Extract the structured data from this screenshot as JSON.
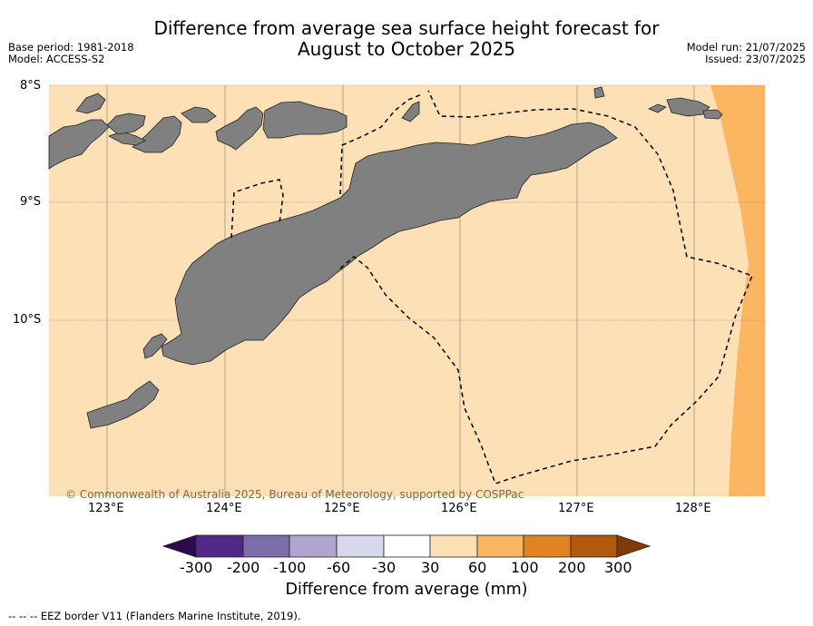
{
  "title": {
    "line1": "Difference from average sea surface height forecast for",
    "line2": "August to October 2025"
  },
  "meta": {
    "base_period": "Base period: 1981-2018",
    "model": "Model: ACCESS-S2",
    "model_run": "Model run: 21/07/2025",
    "issued": "Issued: 23/07/2025"
  },
  "axes": {
    "lat_labels": [
      "8°S",
      "9°S",
      "10°S"
    ],
    "lon_labels": [
      "123°E",
      "124°E",
      "125°E",
      "126°E",
      "127°E",
      "128°E"
    ]
  },
  "copyright": "© Commonwealth of Australia 2025, Bureau of Meteorology, supported by COSPPac",
  "colorbar": {
    "label": "Difference from average (mm)",
    "ticks": [
      "-300",
      "-200",
      "-100",
      "-60",
      "-30",
      "30",
      "60",
      "100",
      "200",
      "300"
    ],
    "colors": {
      "below": "#2d0a4e",
      "bins": [
        "#512888",
        "#7b6eaa",
        "#aea6d0",
        "#d8d8ec",
        "#ffffff",
        "#fde0b6",
        "#fcb561",
        "#df8420",
        "#b25a0b"
      ],
      "above": "#7e3a07"
    }
  },
  "map_colors": {
    "ocean_30_60": "#fde0b6",
    "ocean_60_100": "#fcb561",
    "land": "#808080"
  },
  "footnote": "--  --  -- EEZ border V11 (Flanders Marine Institute, 2019)."
}
